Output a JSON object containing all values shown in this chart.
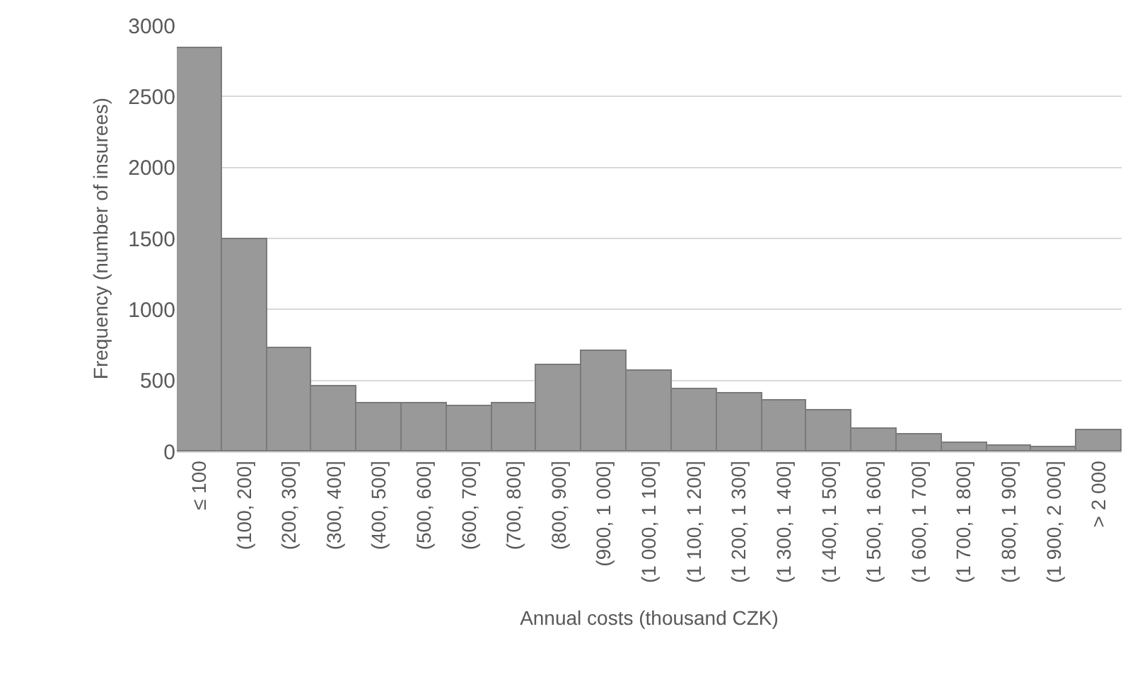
{
  "chart_data": {
    "type": "bar",
    "xlabel": "Annual costs (thousand CZK)",
    "ylabel": "Frequency (number of insurees)",
    "categories": [
      "≤ 100",
      "(100, 200]",
      "(200, 300]",
      "(300, 400]",
      "(400, 500]",
      "(500, 600]",
      "(600, 700]",
      "(700, 800]",
      "(800, 900]",
      "(900, 1 000]",
      "(1 000, 1 100]",
      "(1 100, 1 200]",
      "(1 200, 1 300]",
      "(1 300, 1 400]",
      "(1 400, 1 500]",
      "(1 500, 1 600]",
      "(1 600, 1 700]",
      "(1 700, 1 800]",
      "(1 800, 1 900]",
      "(1 900, 2 000]",
      "> 2 000"
    ],
    "values": [
      2840,
      1500,
      730,
      460,
      340,
      340,
      320,
      340,
      610,
      710,
      565,
      440,
      410,
      360,
      290,
      160,
      120,
      60,
      40,
      25,
      150
    ],
    "color": "#999999",
    "ylim": [
      0,
      3000
    ],
    "yticks": [
      0,
      500,
      1000,
      1500,
      2000,
      2500,
      3000
    ],
    "grid": "y",
    "legend": false
  }
}
